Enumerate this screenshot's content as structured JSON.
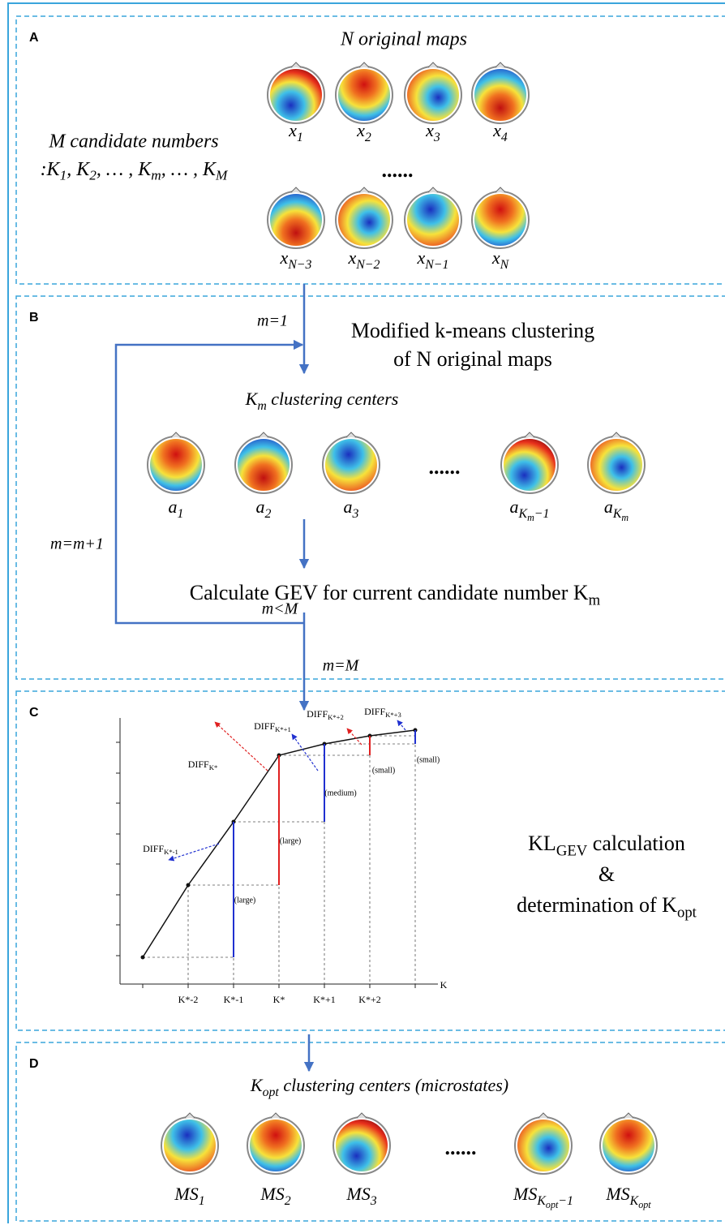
{
  "panel_a": {
    "letter": "A",
    "title": "N original maps",
    "candidates_1": "M candidate numbers",
    "candidates_2": [
      {
        "text": ":K"
      },
      {
        "sub": "1"
      },
      {
        "text": ", K"
      },
      {
        "sub": "2"
      },
      {
        "text": ", … , K"
      },
      {
        "sub": "m"
      },
      {
        "text": ", … , K"
      },
      {
        "sub": "M"
      }
    ],
    "row1_labels": [
      [
        {
          "text": "x"
        },
        {
          "sub": "1"
        }
      ],
      [
        {
          "text": "x"
        },
        {
          "sub": "2"
        }
      ],
      [
        {
          "text": "x"
        },
        {
          "sub": "3"
        }
      ],
      [
        {
          "text": "x"
        },
        {
          "sub": "4"
        }
      ]
    ],
    "dots": "......",
    "row2_labels": [
      [
        {
          "text": "x"
        },
        {
          "sub": "N−3"
        }
      ],
      [
        {
          "text": "x"
        },
        {
          "sub": "N−2"
        }
      ],
      [
        {
          "text": "x"
        },
        {
          "sub": "N−1"
        }
      ],
      [
        {
          "text": "x"
        },
        {
          "sub": "N"
        }
      ]
    ]
  },
  "panel_b": {
    "letter": "B",
    "m_init": "m=1",
    "step1": [
      "Modified k-means clustering",
      "of N original maps"
    ],
    "centers_title": [
      {
        "text": "K"
      },
      {
        "sub": "m"
      },
      {
        "text": " clustering centers"
      }
    ],
    "center_labels": [
      [
        {
          "text": "a"
        },
        {
          "sub": "1"
        }
      ],
      [
        {
          "text": "a"
        },
        {
          "sub": "2"
        }
      ],
      [
        {
          "text": "a"
        },
        {
          "sub": "3"
        }
      ],
      [
        {
          "text": "a"
        },
        {
          "sub": "K"
        },
        {
          "subsub": "m"
        },
        {
          "sub": "−1"
        }
      ],
      [
        {
          "text": "a"
        },
        {
          "sub": "K"
        },
        {
          "subsub": "m"
        }
      ]
    ],
    "dots": "......",
    "loop": "m=m+1",
    "step2": [
      {
        "text": "Calculate GEV for current candidate number K"
      },
      {
        "sub": "m"
      }
    ],
    "cond": "m<M",
    "exit": "m=M"
  },
  "panel_c": {
    "letter": "C",
    "diff_labels": [
      [
        {
          "text": "DIFF"
        },
        {
          "sub": "K*-1"
        }
      ],
      [
        {
          "text": "DIFF"
        },
        {
          "sub": "K*"
        }
      ],
      [
        {
          "text": "DIFF"
        },
        {
          "sub": "K*+1"
        }
      ],
      [
        {
          "text": "DIFF"
        },
        {
          "sub": "K*+2"
        }
      ],
      [
        {
          "text": "DIFF"
        },
        {
          "sub": "K*+3"
        }
      ]
    ],
    "magnitudes": [
      "(large)",
      "(large)",
      "(medium)",
      "(small)",
      "(small)"
    ],
    "x_ticks": [
      "K*-2",
      "K*-1",
      "K*",
      "K*+1",
      "K*+2"
    ],
    "x_axis_label": "K",
    "side": [
      [
        {
          "text": "KL"
        },
        {
          "sub": "GEV"
        },
        {
          "text": " calculation"
        }
      ],
      [
        {
          "text": "&"
        }
      ],
      [
        {
          "text": "determination of K"
        },
        {
          "sub": "opt"
        }
      ]
    ]
  },
  "panel_d": {
    "letter": "D",
    "title": [
      {
        "text": "K"
      },
      {
        "sub": "opt"
      },
      {
        "text": " clustering centers (microstates)"
      }
    ],
    "labels": [
      [
        {
          "text": "MS"
        },
        {
          "sub": "1"
        }
      ],
      [
        {
          "text": "MS"
        },
        {
          "sub": "2"
        }
      ],
      [
        {
          "text": "MS"
        },
        {
          "sub": "3"
        }
      ],
      [
        {
          "text": "MS"
        },
        {
          "sub": "K"
        },
        {
          "subsub": "opt"
        },
        {
          "sub": "−1"
        }
      ],
      [
        {
          "text": "MS"
        },
        {
          "sub": "K"
        },
        {
          "subsub": "opt"
        }
      ]
    ],
    "dots": "......"
  }
}
